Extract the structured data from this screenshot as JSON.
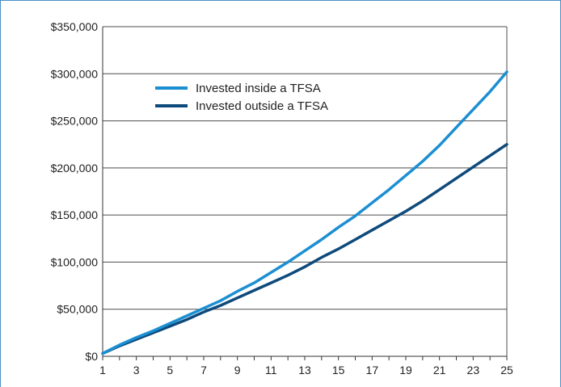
{
  "chart_data": {
    "type": "line",
    "x": [
      1,
      2,
      3,
      4,
      5,
      6,
      7,
      8,
      9,
      10,
      11,
      12,
      13,
      14,
      15,
      16,
      17,
      18,
      19,
      20,
      21,
      22,
      23,
      24,
      25
    ],
    "x_tick_labels": [
      "1",
      "3",
      "5",
      "7",
      "9",
      "11",
      "13",
      "15",
      "17",
      "19",
      "21",
      "23",
      "25"
    ],
    "y_tick_labels": [
      "$0",
      "$50,000",
      "$100,000",
      "$150,000",
      "$200,000",
      "$250,000",
      "$300,000",
      "$350,000"
    ],
    "y_ticks": [
      0,
      50000,
      100000,
      150000,
      200000,
      250000,
      300000,
      350000
    ],
    "xlim": [
      1,
      25
    ],
    "ylim": [
      0,
      350000
    ],
    "grid": "horizontal",
    "legend_position": "upper-left",
    "series": [
      {
        "name": "Invested inside a TFSA",
        "color": "#1b8fd2",
        "values": [
          3000,
          12000,
          20000,
          27000,
          35000,
          43000,
          51000,
          59000,
          69000,
          78000,
          89000,
          100000,
          112000,
          124000,
          137000,
          149000,
          163000,
          177000,
          192000,
          207000,
          224000,
          243000,
          262000,
          281000,
          302000
        ]
      },
      {
        "name": "Invested outside a TFSA",
        "color": "#0e4a7c",
        "values": [
          3000,
          11000,
          18000,
          25000,
          32000,
          39000,
          47000,
          54000,
          62000,
          70000,
          78000,
          86000,
          95000,
          105000,
          114000,
          124000,
          134000,
          144000,
          154000,
          165000,
          177000,
          189000,
          201000,
          213000,
          225000
        ]
      }
    ]
  }
}
